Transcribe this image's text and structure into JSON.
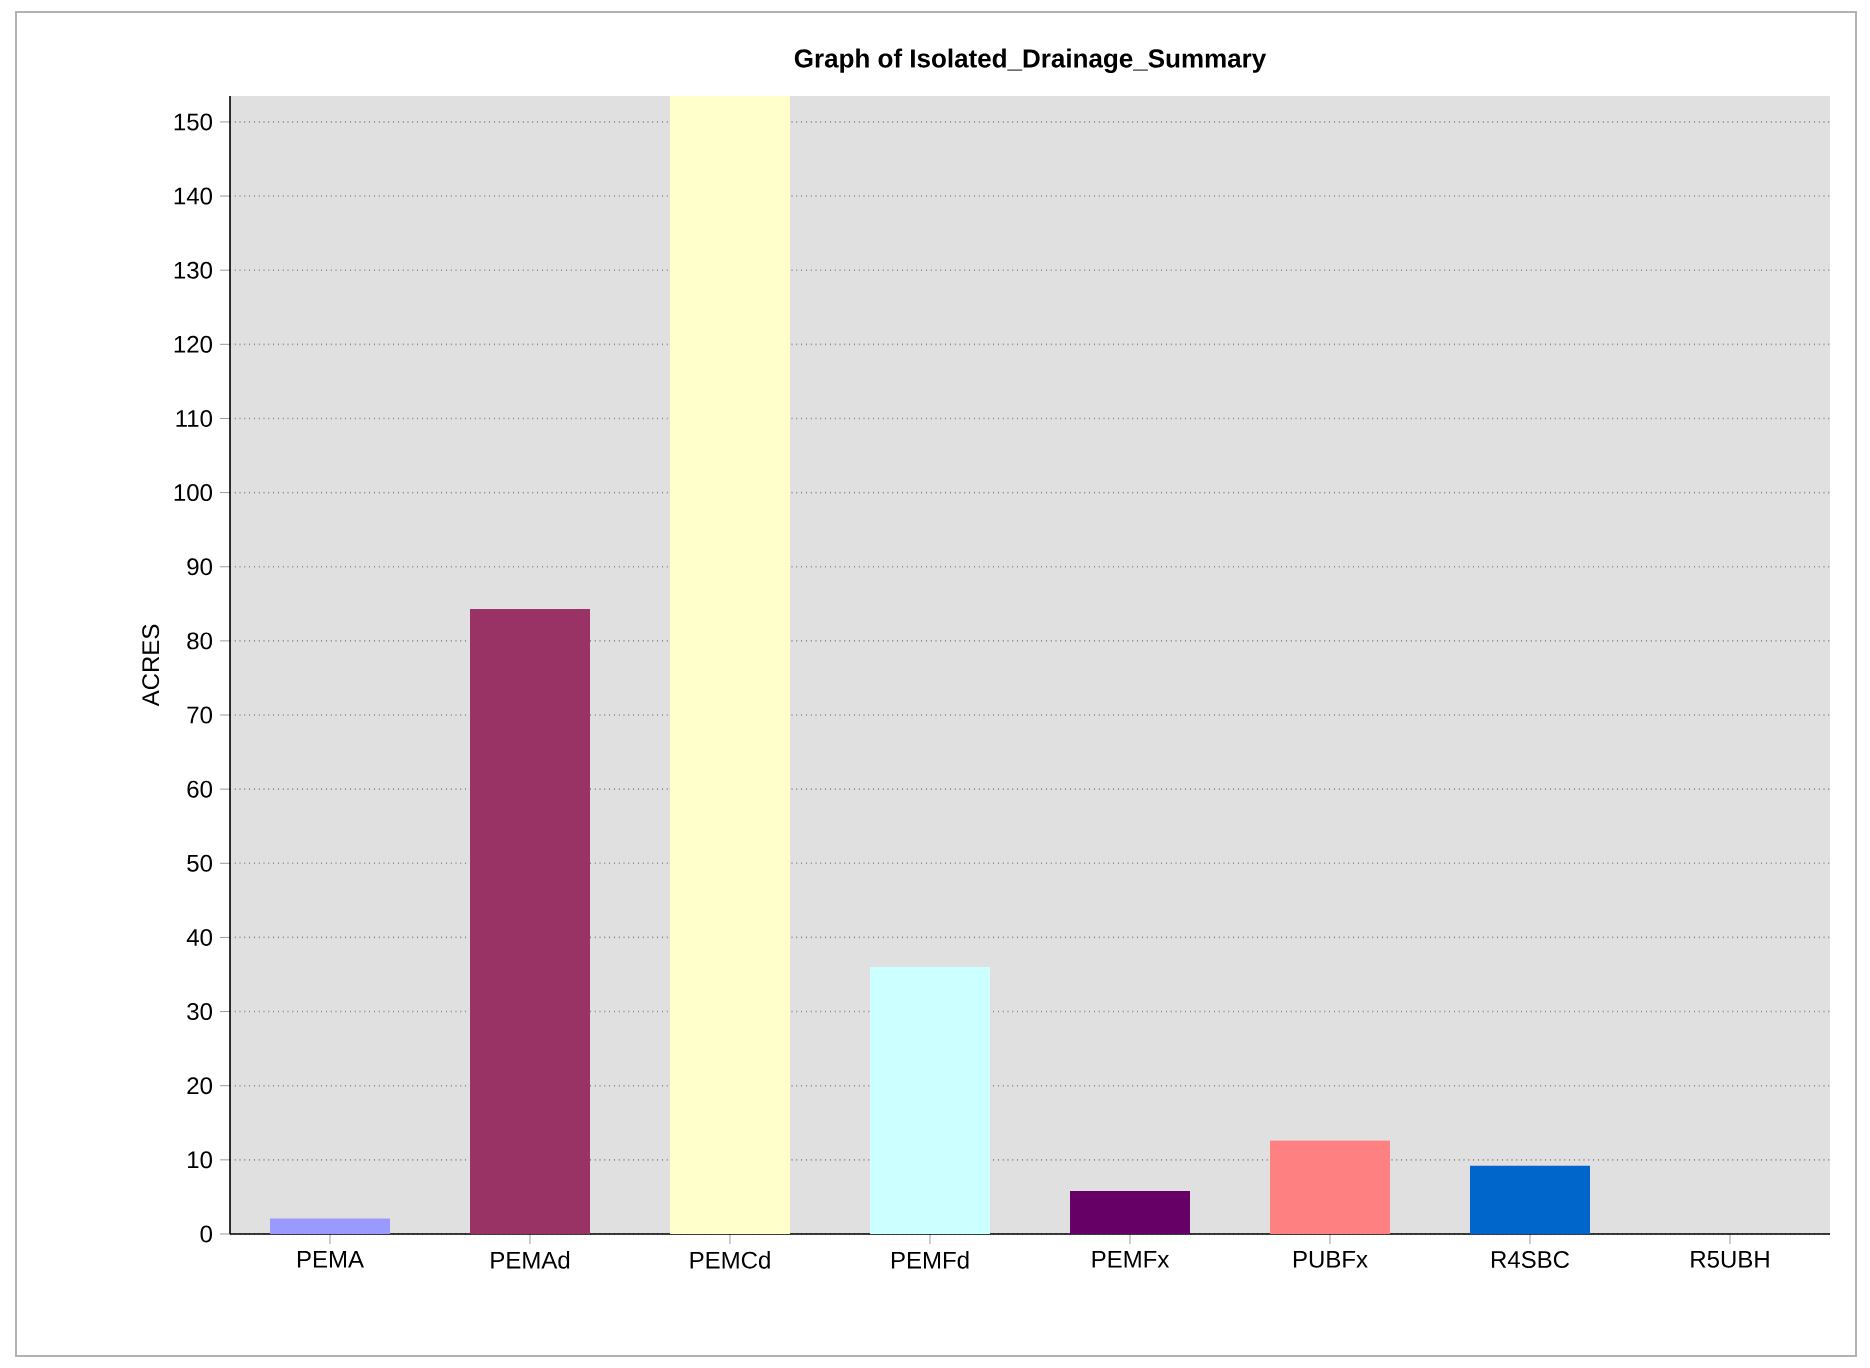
{
  "chart_data": {
    "type": "bar",
    "title": "Graph of Isolated_Drainage_Summary",
    "ylabel": "ACRES",
    "categories": [
      "PEMA",
      "PEMAd",
      "PEMCd",
      "PEMFd",
      "PEMFx",
      "PUBFx",
      "R4SBC",
      "R5UBH"
    ],
    "values": [
      2.1,
      84.3,
      153.5,
      36,
      5.8,
      12.6,
      9.2,
      0
    ],
    "colors": [
      "#9999ff",
      "#993366",
      "#ffffcc",
      "#ccffff",
      "#660066",
      "#ff8080",
      "#0066cc",
      "#ccccff"
    ],
    "ylim": [
      0,
      153.5
    ],
    "yticks": [
      0,
      10,
      20,
      30,
      40,
      50,
      60,
      70,
      80,
      90,
      100,
      110,
      120,
      130,
      140,
      150
    ],
    "grid": "y"
  }
}
